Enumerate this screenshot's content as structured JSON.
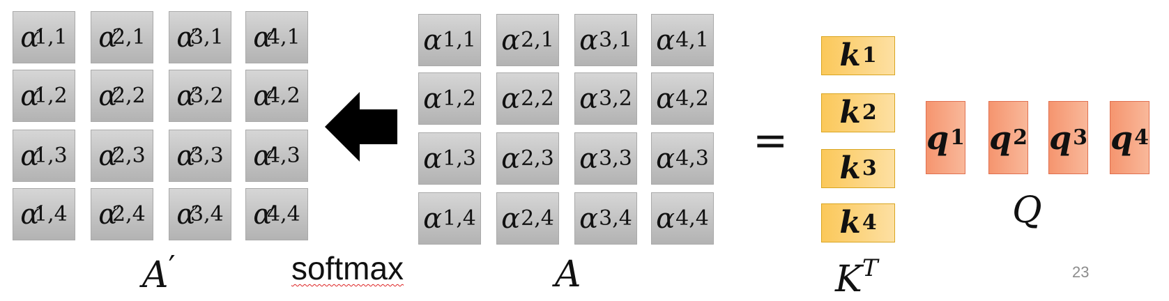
{
  "a_prime_matrix": {
    "label_base": "A",
    "label_prime": "′",
    "symbol": "α",
    "prime": "′",
    "rows": [
      [
        "1,1",
        "2,1",
        "3,1",
        "4,1"
      ],
      [
        "1,2",
        "2,2",
        "3,2",
        "4,2"
      ],
      [
        "1,3",
        "2,3",
        "3,3",
        "4,3"
      ],
      [
        "1,4",
        "2,4",
        "3,4",
        "4,4"
      ]
    ]
  },
  "softmax_label": "softmax",
  "a_matrix": {
    "label": "A",
    "symbol": "α",
    "rows": [
      [
        "1,1",
        "2,1",
        "3,1",
        "4,1"
      ],
      [
        "1,2",
        "2,2",
        "3,2",
        "4,2"
      ],
      [
        "1,3",
        "2,3",
        "3,3",
        "4,3"
      ],
      [
        "1,4",
        "2,4",
        "3,4",
        "4,4"
      ]
    ]
  },
  "equals": "=",
  "keys": {
    "label_base": "K",
    "label_sup": "T",
    "symbol": "k",
    "items": [
      "1",
      "2",
      "3",
      "4"
    ],
    "color": "#fcd27a"
  },
  "queries": {
    "label": "Q",
    "symbol": "q",
    "items": [
      "1",
      "2",
      "3",
      "4"
    ],
    "color": "#f7a583"
  },
  "page_number": "23",
  "arrow_icon": "left-arrow"
}
